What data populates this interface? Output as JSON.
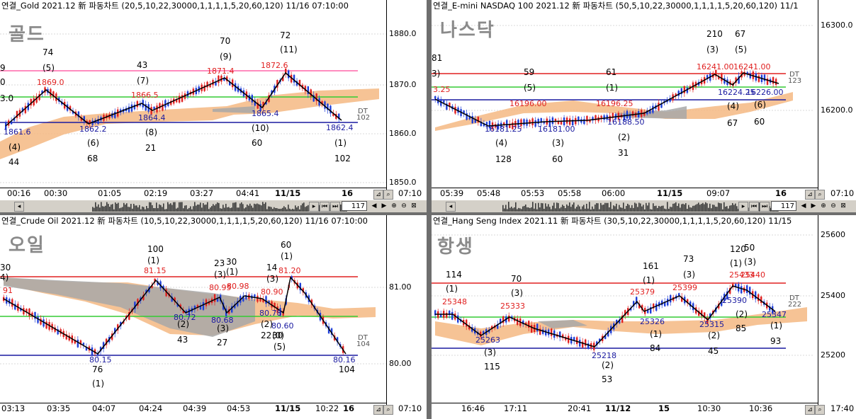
{
  "panels": [
    {
      "id": "gold",
      "title": "연결_Gold 2021.12 新 파동차트 (20,5,10,22,30000,1,1,1,1,5,20,60,120) 11/16 07:10:00",
      "big_label": "골드",
      "y_ticks": [
        "1880.0",
        "1870.0",
        "1860.0",
        "1850.0"
      ],
      "x_ticks": [
        "00:16",
        "00:30",
        "01:05",
        "02:19",
        "03:27",
        "04:41",
        "11/15",
        "16",
        "07:10"
      ],
      "toolbar_value": "117",
      "dt": "DT",
      "dt_value": "102",
      "price_labels": [
        "1861.6",
        "1869.0",
        "1862.2",
        "1866.5",
        "1864.4",
        "1871.4",
        "1865.4",
        "1872.6",
        "1862.4"
      ],
      "wave_labels": [
        "9",
        "0",
        "74",
        "(5)",
        "43",
        "(7)",
        "70",
        "(9)",
        "72",
        "(11)",
        "(4)",
        "44",
        "(6)",
        "68",
        "(8)",
        "21",
        "(10)",
        "60",
        "(1)",
        "102",
        "3.0"
      ]
    },
    {
      "id": "nasdaq",
      "title": "연결_E-mini NASDAQ 100 2021.12 新 파동차트 (50,5,10,22,30000,1,1,1,1,5,20,60,120) 11/1",
      "big_label": "나스닥",
      "y_ticks": [
        "16300.0",
        "16200.0"
      ],
      "x_ticks": [
        "05:39",
        "05:48",
        "05:53",
        "05:58",
        "06:00",
        "11/15",
        "09:07",
        "16",
        "07:10"
      ],
      "toolbar_value": "117",
      "dt": "DT",
      "dt_value": "123",
      "price_labels": [
        "3.25",
        "16196.00",
        "16181.25",
        "16181.00",
        "16196.25",
        "16188.50",
        "16241.00",
        "16241.00",
        "16224.25",
        "16226.00"
      ],
      "wave_labels": [
        "81",
        "3)",
        "59",
        "(5)",
        "61",
        "(1)",
        "210",
        "(3)",
        "67",
        "(5)",
        "(4)",
        "128",
        "(3)",
        "60",
        "(2)",
        "31",
        "(4)",
        "67",
        "(6)",
        "60"
      ]
    },
    {
      "id": "oil",
      "title": "연결_Crude Oil 2021.12 新 파동차트 (10,5,10,22,30000,1,1,1,1,5,20,60,120) 11/16 07:10:00",
      "big_label": "오일",
      "y_ticks": [
        "81.00",
        "80.00"
      ],
      "x_ticks": [
        "03:13",
        "03:35",
        "04:07",
        "04:24",
        "04:39",
        "04:53",
        "11/15",
        "10:22",
        "16",
        "07:10"
      ],
      "toolbar_value": "",
      "dt": "DT",
      "dt_value": "104",
      "price_labels": [
        "91",
        "81.15",
        "80.95",
        "80.98",
        "80.90",
        "81.20",
        "80.72",
        "80.68",
        "80.78",
        "80.60",
        "80.15",
        "80.16"
      ],
      "wave_labels": [
        "30",
        "4)",
        "100",
        "(1)",
        "23",
        "(3)",
        "30",
        "(1)",
        "14",
        "(3)",
        "60",
        "(1)",
        "(2)",
        "43",
        "(3)",
        "27",
        "(2)",
        "22",
        "(0)",
        "30",
        "(5)",
        "76",
        "(1)",
        "104"
      ]
    },
    {
      "id": "hangseng",
      "title": "연결_Hang Seng Index 2021.11 新 파동차트 (30,5,10,22,30000,1,1,1,1,5,20,60,120) 11/15",
      "big_label": "항생",
      "y_ticks": [
        "25600",
        "25400",
        "25200"
      ],
      "x_ticks": [
        "16:46",
        "17:11",
        "20:41",
        "11/12",
        "15",
        "10:30",
        "10:36",
        "17:40"
      ],
      "toolbar_value": "",
      "dt": "DT",
      "dt_value": "222",
      "price_labels": [
        "25348",
        "25333",
        "25263",
        "25218",
        "25379",
        "25399",
        "25326",
        "25315",
        "25433",
        "25440",
        "25390",
        "25347"
      ],
      "wave_labels": [
        "114",
        "(1)",
        "70",
        "(3)",
        "161",
        "(1)",
        "73",
        "(3)",
        "120",
        "(1)",
        "50",
        "(3)",
        "(2)",
        "85",
        "(3)",
        "115",
        "(2)",
        "53",
        "(1)",
        "84",
        "(2)",
        "45",
        "(1)",
        "93"
      ]
    }
  ]
}
